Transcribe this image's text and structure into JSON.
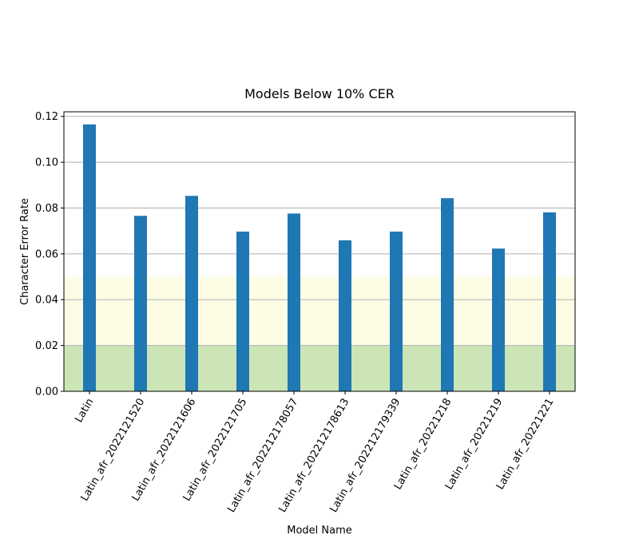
{
  "chart_data": {
    "type": "bar",
    "title": "Models Below 10% CER",
    "xlabel": "Model Name",
    "ylabel": "Character Error Rate",
    "ylim": [
      0,
      0.122
    ],
    "yticks": [
      0.0,
      0.02,
      0.04,
      0.06,
      0.08,
      0.1,
      0.12
    ],
    "ytick_labels": [
      "0.00",
      "0.02",
      "0.04",
      "0.06",
      "0.08",
      "0.10",
      "0.12"
    ],
    "grid": "horizontal",
    "categories": [
      "Latin",
      "Latin_afr_2022121520",
      "Latin_afr_2022121606",
      "Latin_afr_2022121705",
      "Latin_afr_202212178057",
      "Latin_afr_202212178613",
      "Latin_afr_202212179339",
      "Latin_afr_20221218",
      "Latin_afr_20221219",
      "Latin_afr_20221221"
    ],
    "values": [
      0.1165,
      0.0766,
      0.0853,
      0.0697,
      0.0776,
      0.0659,
      0.0697,
      0.0843,
      0.0623,
      0.0781
    ],
    "bands": [
      {
        "from": 0.0,
        "to": 0.02,
        "color": "#cce5b7"
      },
      {
        "from": 0.02,
        "to": 0.05,
        "color": "#fdfde6"
      }
    ],
    "bar_color": "#1f77b4"
  }
}
